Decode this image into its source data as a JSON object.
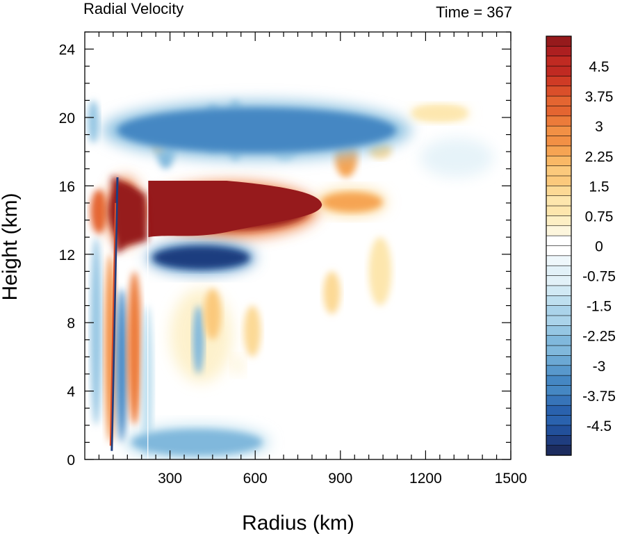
{
  "chart_data": {
    "type": "heatmap",
    "title_left": "Radial Velocity",
    "title_right": "Time = 367",
    "xlabel": "Radius (km)",
    "ylabel": "Height (km)",
    "xlim": [
      0,
      1500
    ],
    "ylim": [
      0,
      25
    ],
    "xticks": [
      300,
      600,
      900,
      1200,
      1500
    ],
    "yticks": [
      0,
      4,
      8,
      12,
      16,
      20,
      24
    ],
    "colorbar": {
      "levels": [
        -5.25,
        -5,
        -4.75,
        -4.5,
        -4.25,
        -4,
        -3.75,
        -3.5,
        -3.25,
        -3,
        -2.75,
        -2.5,
        -2.25,
        -2,
        -1.75,
        -1.5,
        -1.25,
        -1,
        -0.75,
        -0.5,
        -0.25,
        0,
        0.25,
        0.5,
        0.75,
        1,
        1.25,
        1.5,
        1.75,
        2,
        2.25,
        2.5,
        2.75,
        3,
        3.25,
        3.5,
        3.75,
        4,
        4.25,
        4.5,
        4.75,
        5,
        5.25
      ],
      "labels": [
        "4.5",
        "3.75",
        "3",
        "2.25",
        "1.5",
        "0.75",
        "0",
        "-0.75",
        "-1.5",
        "-2.25",
        "-3",
        "-3.75",
        "-4.5"
      ],
      "label_values": [
        4.5,
        3.75,
        3,
        2.25,
        1.5,
        0.75,
        0,
        -0.75,
        -1.5,
        -2.25,
        -3,
        -3.75,
        -4.5
      ],
      "colors_neg": [
        "#1c2c5f",
        "#1f3d7f",
        "#22509b",
        "#2a62ae",
        "#3774b9",
        "#4587c3",
        "#5898cc",
        "#6ba8d4",
        "#80b8dc",
        "#95c6e3",
        "#aad3ea",
        "#bedfef",
        "#d1e9f4",
        "#e2f1f8",
        "#eef7fb",
        "#ffffff"
      ],
      "colors_pos": [
        "#ffffff",
        "#fdf6dd",
        "#fdefc4",
        "#fde6ad",
        "#fcd995",
        "#fbc97c",
        "#f9b866",
        "#f6a453",
        "#f29045",
        "#ec7b3a",
        "#e46531",
        "#da4f2a",
        "#cf3b25",
        "#c02a22",
        "#ad1f20",
        "#961a1c"
      ]
    },
    "features": [
      {
        "name": "upper outflow jet",
        "sign": "positive",
        "r": [
          210,
          820
        ],
        "z": [
          13,
          16.2
        ],
        "peak": 5.25
      },
      {
        "name": "inner eyewall outflow",
        "sign": "positive",
        "r": [
          80,
          200
        ],
        "z": [
          12.5,
          16.5
        ],
        "peak": 5.25
      },
      {
        "name": "outflow tail",
        "sign": "positive",
        "r": [
          820,
          1060
        ],
        "z": [
          14.3,
          15.8
        ],
        "peak": 2.5
      },
      {
        "name": "inflow below outflow",
        "sign": "negative",
        "r": [
          220,
          600
        ],
        "z": [
          10.9,
          12.7
        ],
        "peak": -5
      },
      {
        "name": "upper inflow layer",
        "sign": "negative",
        "r": [
          60,
          1150
        ],
        "z": [
          17.5,
          21
        ],
        "peak": -3.5
      },
      {
        "name": "high-level outflow",
        "sign": "positive",
        "r": [
          1150,
          1350
        ],
        "z": [
          19.8,
          20.7
        ],
        "peak": 1.2
      },
      {
        "name": "low-level inflow",
        "sign": "negative",
        "r": [
          140,
          650
        ],
        "z": [
          0,
          2
        ],
        "peak": -2.5
      }
    ]
  }
}
